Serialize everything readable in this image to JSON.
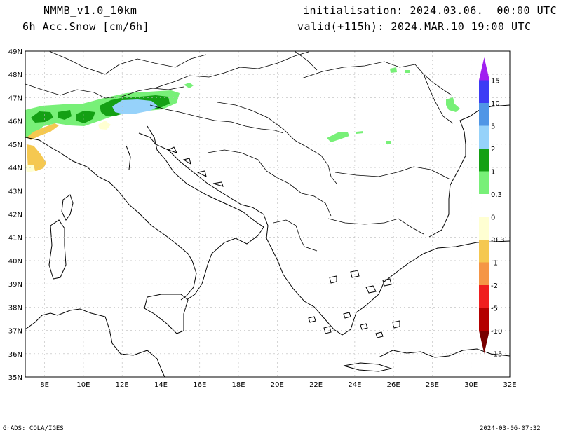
{
  "header": {
    "model": "NMMB_v1.0_10km",
    "variable": "6h Acc.Snow [cm/6h]",
    "init": "initialisation: 2024.03.06.  00:00 UTC",
    "valid": "valid(+115h): 2024.MAR.10 19:00 UTC"
  },
  "map": {
    "lat_labels": [
      "49N",
      "48N",
      "47N",
      "46N",
      "45N",
      "44N",
      "43N",
      "42N",
      "41N",
      "40N",
      "39N",
      "38N",
      "37N",
      "36N",
      "35N"
    ],
    "lon_labels": [
      "8E",
      "10E",
      "12E",
      "14E",
      "16E",
      "18E",
      "20E",
      "22E",
      "24E",
      "26E",
      "28E",
      "30E",
      "32E"
    ],
    "lat_range": [
      35,
      49
    ],
    "lon_range": [
      7,
      32
    ]
  },
  "legend": {
    "levels": [
      "15",
      "10",
      "5",
      "2",
      "1",
      "0.3",
      "0",
      "-0.3",
      "-1",
      "-2",
      "-5",
      "-10",
      "-15"
    ],
    "colors": [
      "#a020f0",
      "#3c3cf5",
      "#5096e6",
      "#96d2fa",
      "#14a014",
      "#78f078",
      "#ffffff",
      "#ffffd2",
      "#f5c850",
      "#f59646",
      "#f01e1e",
      "#b40000",
      "#780000"
    ]
  },
  "footer": {
    "left": "GrADS: COLA/IGES",
    "right": "2024-03-06-07:32"
  }
}
